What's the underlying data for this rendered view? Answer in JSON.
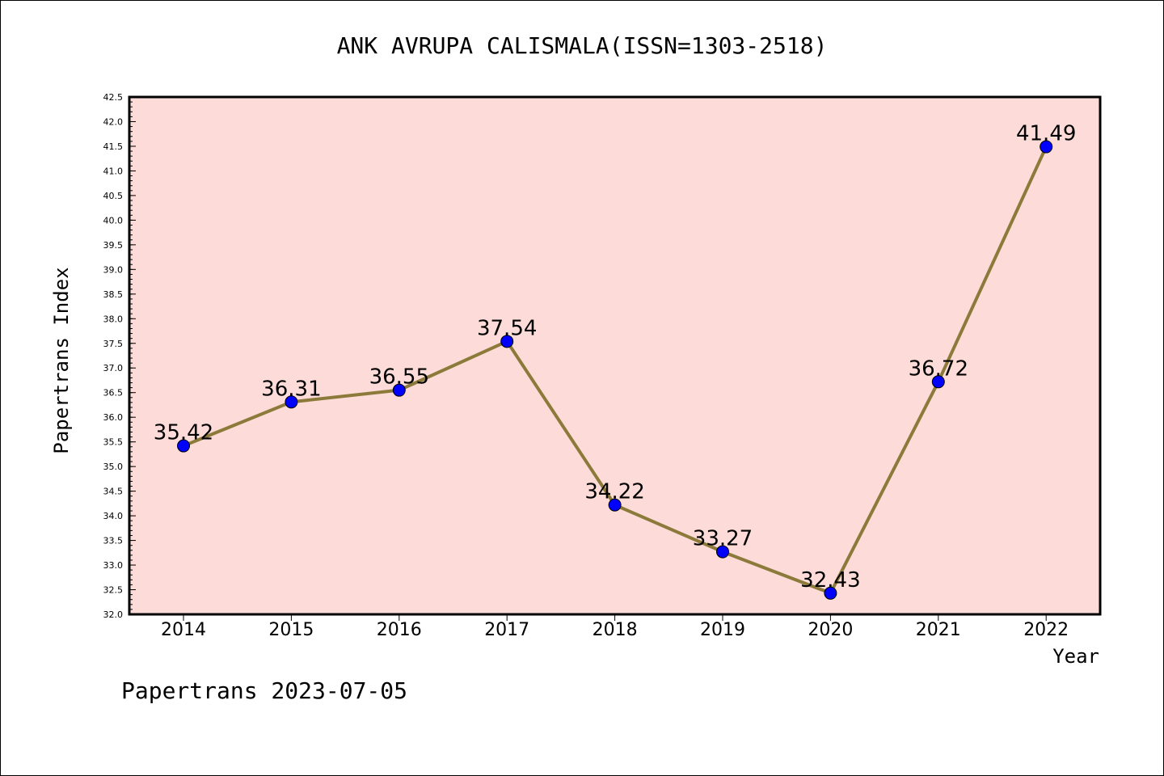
{
  "chart_data": {
    "type": "line",
    "title": "ANK AVRUPA CALISMALA(ISSN=1303-2518)",
    "xlabel": "Year",
    "ylabel": "Papertrans Index",
    "categories": [
      "2014",
      "2015",
      "2016",
      "2017",
      "2018",
      "2019",
      "2020",
      "2021",
      "2022"
    ],
    "series": [
      {
        "values": [
          35.42,
          36.31,
          36.55,
          37.54,
          34.22,
          33.27,
          32.43,
          36.72,
          41.49
        ],
        "labels": [
          "35.42",
          "36.31",
          "36.55",
          "37.54",
          "34.22",
          "33.27",
          "32.43",
          "36.72",
          "41.49"
        ]
      }
    ],
    "ylim": [
      32.0,
      42.5
    ],
    "yticks": [
      "32.0",
      "32.5",
      "33.0",
      "33.5",
      "34.0",
      "34.5",
      "35.0",
      "35.5",
      "36.0",
      "36.5",
      "37.0",
      "37.5",
      "38.0",
      "38.5",
      "39.0",
      "39.5",
      "40.0",
      "40.5",
      "41.0",
      "41.5",
      "42.0",
      "42.5"
    ],
    "grid": false,
    "legend": "none",
    "colors": {
      "plot_background": "#fddbd8",
      "line": "#8c7a3a",
      "marker": "#0000ff",
      "axis": "#000000"
    }
  },
  "footer": {
    "watermark": "Papertrans 2023-07-05"
  }
}
